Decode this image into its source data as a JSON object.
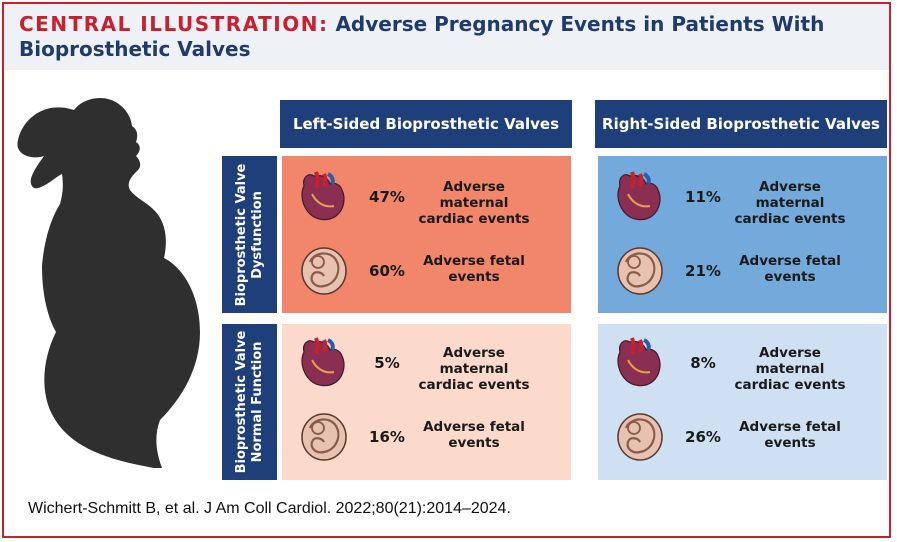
{
  "title": {
    "prefix": "CENTRAL ILLUSTRATION:",
    "text": "Adverse Pregnancy Events in Patients With Bioprosthetic Valves"
  },
  "columns": [
    {
      "label": "Left-Sided Bioprosthetic Valves"
    },
    {
      "label": "Right-Sided Bioprosthetic Valves"
    }
  ],
  "rows": [
    {
      "label_line1": "Bioprosthetic Valve",
      "label_line2": "Dysfunction"
    },
    {
      "label_line1": "Bioprosthetic Valve",
      "label_line2": "Normal Function"
    }
  ],
  "cells": [
    {
      "maternal": {
        "percent": "47%",
        "line1": "Adverse maternal",
        "line2": "cardiac events"
      },
      "fetal": {
        "percent": "60%",
        "line1": "Adverse fetal",
        "line2": "events"
      }
    },
    {
      "maternal": {
        "percent": "11%",
        "line1": "Adverse maternal",
        "line2": "cardiac events"
      },
      "fetal": {
        "percent": "21%",
        "line1": "Adverse fetal",
        "line2": "events"
      }
    },
    {
      "maternal": {
        "percent": "5%",
        "line1": "Adverse maternal",
        "line2": "cardiac events"
      },
      "fetal": {
        "percent": "16%",
        "line1": "Adverse fetal",
        "line2": "events"
      }
    },
    {
      "maternal": {
        "percent": "8%",
        "line1": "Adverse maternal",
        "line2": "cardiac events"
      },
      "fetal": {
        "percent": "26%",
        "line1": "Adverse fetal",
        "line2": "events"
      }
    }
  ],
  "citation": "Wichert-Schmitt B, et al. J Am Coll Cardiol. 2022;80(21):2014–2024.",
  "colors": {
    "accent_red": "#c8202e",
    "navy": "#1f3f7a",
    "left_dysfunction": "#f2866b",
    "left_normal": "#fbd9cb",
    "right_dysfunction": "#74aadb",
    "right_normal": "#cfe0f3",
    "silhouette": "#2f2f2f"
  },
  "icons": {
    "maternal": "heart-icon",
    "fetal": "fetus-icon",
    "figure": "pregnant-woman-silhouette"
  }
}
